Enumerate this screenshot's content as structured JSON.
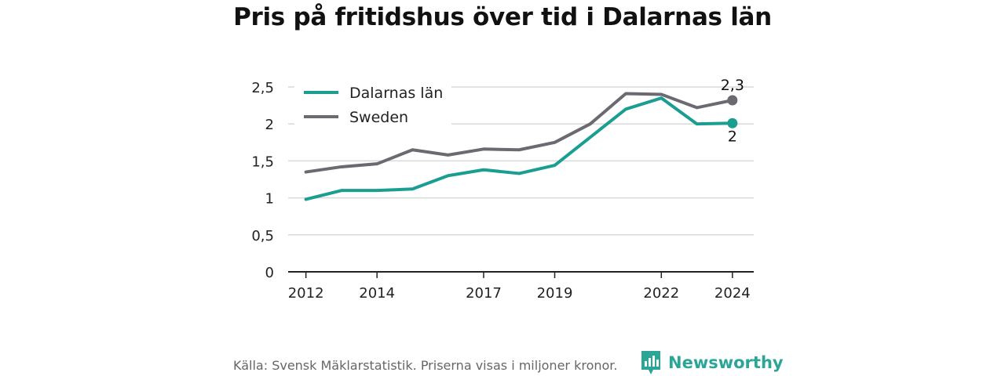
{
  "title": "Pris på fritidshus över tid i Dalarnas län",
  "footer": "Källa: Svensk Mäklarstatistik. Priserna visas i miljoner kronor.",
  "brand": "Newsworthy",
  "colors": {
    "dalarna": "#1a9e91",
    "sweden": "#6b6a70",
    "grid": "#d9d9d9",
    "axis": "#222222",
    "brand": "#2ba595"
  },
  "chart_data": {
    "type": "line",
    "x": [
      2012,
      2013,
      2014,
      2015,
      2016,
      2017,
      2018,
      2019,
      2020,
      2021,
      2022,
      2023,
      2024
    ],
    "x_ticks": [
      "2012",
      "2014",
      "2017",
      "2019",
      "2022",
      "2024"
    ],
    "y_ticks": [
      "0",
      "0,5",
      "1",
      "1,5",
      "2",
      "2,5"
    ],
    "ylim": [
      0,
      2.5
    ],
    "series": [
      {
        "name": "Dalarnas län",
        "values": [
          0.98,
          1.1,
          1.1,
          1.12,
          1.3,
          1.38,
          1.33,
          1.44,
          1.82,
          2.2,
          2.35,
          2.0,
          2.01
        ],
        "end_label": "2"
      },
      {
        "name": "Sweden",
        "values": [
          1.35,
          1.42,
          1.46,
          1.65,
          1.58,
          1.66,
          1.65,
          1.75,
          2.0,
          2.41,
          2.4,
          2.22,
          2.32
        ],
        "end_label": "2,3"
      }
    ],
    "legend": "top-left",
    "grid": true
  }
}
